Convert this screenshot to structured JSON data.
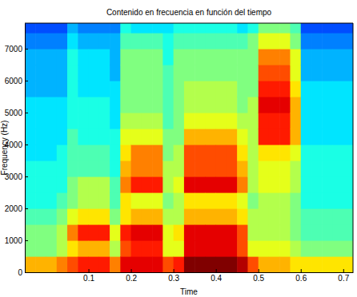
{
  "chart_data": {
    "type": "heatmap",
    "title": "Contenido en frecuencia en función del tiempo",
    "x_label": "Time",
    "y_label": "Frequency (Hz)",
    "xlim": [
      -0.05,
      0.723
    ],
    "ylim": [
      0,
      7800
    ],
    "xticks": [
      0.1,
      0.2,
      0.3,
      0.4,
      0.5,
      0.6,
      0.7
    ],
    "yticks": [
      0,
      1000,
      2000,
      3000,
      4000,
      5000,
      6000,
      7000
    ],
    "zlim": [
      0,
      10
    ],
    "x_bins": [
      -0.05,
      -0.025,
      0,
      0.025,
      0.05,
      0.075,
      0.1,
      0.125,
      0.15,
      0.175,
      0.2,
      0.225,
      0.25,
      0.275,
      0.3,
      0.325,
      0.35,
      0.375,
      0.4,
      0.425,
      0.45,
      0.475,
      0.5,
      0.525,
      0.55,
      0.575,
      0.6,
      0.625,
      0.65,
      0.675,
      0.7,
      0.725
    ],
    "y_bins": [
      0,
      500,
      1000,
      1500,
      2000,
      2500,
      3000,
      3500,
      4000,
      4500,
      5000,
      5500,
      6000,
      6500,
      7000,
      7500,
      8000
    ],
    "values": [
      [
        7,
        5,
        5,
        4.5,
        4,
        4,
        4,
        3.5,
        3.5,
        3.5,
        3.5,
        3,
        3,
        3,
        2.5,
        2
      ],
      [
        7,
        5,
        5,
        4.5,
        4,
        4,
        4,
        3.5,
        3.5,
        3.5,
        3.5,
        3,
        3,
        3,
        2.5,
        2
      ],
      [
        7,
        5,
        5,
        4.5,
        4,
        4,
        4,
        3.5,
        3.5,
        3.5,
        3.5,
        3,
        3,
        3,
        2.5,
        2
      ],
      [
        7.5,
        5.5,
        5.5,
        5,
        4.5,
        4,
        4,
        4,
        3.5,
        3.5,
        3.5,
        3,
        3,
        3,
        2.5,
        2
      ],
      [
        8,
        6.5,
        7.5,
        6,
        5,
        5,
        4.5,
        4.5,
        4.5,
        4,
        4,
        4,
        4,
        4,
        3.5,
        3
      ],
      [
        8.5,
        7,
        8.5,
        6.5,
        5.5,
        5.5,
        4.5,
        4.5,
        4,
        4,
        4,
        3.5,
        3.5,
        3.5,
        3,
        2.5
      ],
      [
        8.5,
        7,
        8.5,
        6.5,
        5.5,
        5.5,
        4.5,
        4.5,
        4,
        4,
        4,
        3.5,
        3.5,
        3.5,
        3,
        2.5
      ],
      [
        8.5,
        7,
        8.5,
        6.5,
        5.5,
        5.5,
        4.5,
        4.5,
        4,
        4,
        4,
        3.5,
        3.5,
        3.5,
        3,
        2.5
      ],
      [
        7.5,
        5.5,
        6,
        5,
        4.5,
        4.5,
        4,
        4,
        4,
        3.5,
        3.5,
        3.5,
        3,
        3,
        3,
        2.5
      ],
      [
        9,
        8,
        8.5,
        6.5,
        6.5,
        7.5,
        7,
        6.5,
        6,
        5.5,
        5,
        5,
        5,
        5,
        4.5,
        4
      ],
      [
        9,
        8.5,
        9,
        7,
        6,
        8.5,
        7.5,
        7.5,
        6,
        5.5,
        5,
        5,
        5,
        5,
        4.5,
        3.5
      ],
      [
        9,
        8.5,
        9,
        7,
        6,
        8.5,
        7.5,
        7.5,
        6,
        5.5,
        5,
        5,
        5,
        5,
        4.5,
        3.5
      ],
      [
        9,
        8.5,
        9,
        7,
        6,
        8.5,
        7.5,
        7.5,
        6,
        5.5,
        5,
        5,
        5,
        5,
        4.5,
        3.5
      ],
      [
        8,
        6,
        6,
        5.5,
        5,
        5.5,
        5.5,
        5,
        5,
        4.5,
        4.5,
        4.5,
        4.5,
        4,
        4,
        3.5
      ],
      [
        8.5,
        6,
        6.5,
        5.5,
        5.5,
        6,
        5.5,
        5.5,
        5,
        5,
        5,
        5,
        5,
        5,
        4.5,
        4
      ],
      [
        10,
        9,
        9,
        7,
        6.5,
        9,
        8,
        8,
        7,
        6,
        5.5,
        5.5,
        5,
        5,
        4.5,
        4
      ],
      [
        10,
        9,
        9,
        7,
        6.5,
        9,
        8,
        8,
        7,
        6,
        5.5,
        5.5,
        5,
        5,
        4.5,
        4
      ],
      [
        10,
        9,
        9,
        7,
        6.5,
        9,
        8,
        8,
        7,
        6,
        5.5,
        5.5,
        5,
        5,
        4.5,
        4
      ],
      [
        10,
        9,
        9,
        7,
        6.5,
        9,
        8,
        8,
        7,
        6,
        5.5,
        5.5,
        5,
        5,
        4.5,
        4
      ],
      [
        10,
        9,
        9,
        7,
        6.5,
        9,
        8,
        8,
        7,
        6,
        5.5,
        5.5,
        5,
        5,
        4.5,
        4
      ],
      [
        9.5,
        8,
        8,
        6.5,
        6,
        7.5,
        7,
        6.5,
        6,
        5.5,
        5,
        5,
        5,
        5,
        4.5,
        3.5
      ],
      [
        8,
        6,
        5.5,
        5.5,
        5,
        5.5,
        5.5,
        5.5,
        5.5,
        5.5,
        5.5,
        5,
        5,
        5,
        5,
        4
      ],
      [
        7,
        6,
        5.5,
        5.5,
        5.5,
        6,
        6,
        6.5,
        8.5,
        8.5,
        9,
        8.5,
        8,
        7.5,
        6,
        5
      ],
      [
        7,
        6,
        5.5,
        5.5,
        5.5,
        6,
        6,
        6.5,
        8.5,
        8.5,
        9,
        8.5,
        8,
        7.5,
        6,
        5
      ],
      [
        7,
        6,
        5.5,
        5.5,
        5.5,
        6,
        6,
        6.5,
        8.5,
        8.5,
        9,
        8.5,
        8,
        7.5,
        6,
        5
      ],
      [
        6.5,
        5.5,
        5,
        5,
        5,
        5.5,
        5.5,
        6,
        7,
        7,
        7,
        6.5,
        6,
        6,
        5,
        4.5
      ],
      [
        6.5,
        5,
        4.5,
        4.5,
        4,
        4,
        4,
        4,
        3.5,
        3.5,
        3.5,
        3.5,
        3,
        3,
        2.5,
        2
      ],
      [
        6.5,
        5,
        4.5,
        4.5,
        4,
        4,
        4,
        4,
        3.5,
        3.5,
        3.5,
        3.5,
        3,
        3,
        2.5,
        2
      ],
      [
        6.5,
        5,
        4.5,
        4.5,
        4,
        4,
        4,
        4,
        3.5,
        3.5,
        3.5,
        3.5,
        3,
        3,
        2.5,
        2
      ],
      [
        6.5,
        5,
        4.5,
        4.5,
        4,
        4,
        4,
        4,
        3.5,
        3.5,
        3.5,
        3.5,
        3,
        3,
        2.5,
        2
      ],
      [
        6.5,
        5,
        4.5,
        4.5,
        4,
        4,
        4,
        4,
        3.5,
        3.5,
        3.5,
        3.5,
        3,
        3,
        2.5,
        2
      ]
    ]
  }
}
